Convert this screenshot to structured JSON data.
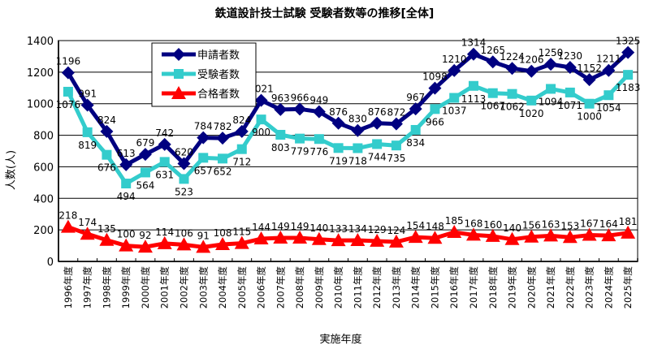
{
  "chart_data": {
    "type": "line",
    "title": "鉄道設計技士試験 受験者数等の推移[全体]",
    "xlabel": "実施年度",
    "ylabel": "人数(人)",
    "ylim": [
      0,
      1400
    ],
    "yticks": [
      0,
      200,
      400,
      600,
      800,
      1000,
      1200,
      1400
    ],
    "ytick_labels": [
      "0",
      "200",
      "400",
      "600",
      "800",
      "1000",
      "1200",
      "1400"
    ],
    "grid": true,
    "legend_position": "top-left",
    "categories": [
      "1996年度",
      "1997年度",
      "1998年度",
      "1999年度",
      "2000年度",
      "2001年度",
      "2002年度",
      "2003年度",
      "2004年度",
      "2005年度",
      "2006年度",
      "2007年度",
      "2008年度",
      "2009年度",
      "2010年度",
      "2011年度",
      "2012年度",
      "2013年度",
      "2014年度",
      "2015年度",
      "2016年度",
      "2017年度",
      "2018年度",
      "2019年度",
      "2020年度",
      "2021年度",
      "2022年度",
      "2023年度",
      "2024年度",
      "2025年度"
    ],
    "series": [
      {
        "name": "申請者数",
        "color": "#000080",
        "marker": "diamond",
        "values": [
          1196,
          991,
          824,
          613,
          679,
          742,
          620,
          784,
          782,
          824,
          1021,
          963,
          966,
          949,
          876,
          830,
          876,
          872,
          967,
          1098,
          1210,
          1314,
          1265,
          1224,
          1206,
          1250,
          1230,
          1152,
          1211,
          1325
        ]
      },
      {
        "name": "受験者数",
        "color": "#33CCCC",
        "marker": "square",
        "values": [
          1076,
          819,
          676,
          494,
          564,
          631,
          523,
          657,
          652,
          712,
          900,
          803,
          779,
          776,
          719,
          718,
          744,
          735,
          834,
          966,
          1037,
          1113,
          1067,
          1062,
          1020,
          1094,
          1071,
          1000,
          1054,
          1183
        ]
      },
      {
        "name": "合格者数",
        "color": "#FF0000",
        "marker": "triangle",
        "values": [
          218,
          174,
          135,
          100,
          92,
          114,
          106,
          91,
          108,
          115,
          144,
          149,
          149,
          140,
          133,
          134,
          129,
          124,
          154,
          148,
          185,
          168,
          160,
          140,
          156,
          163,
          153,
          167,
          164,
          181
        ]
      }
    ]
  }
}
